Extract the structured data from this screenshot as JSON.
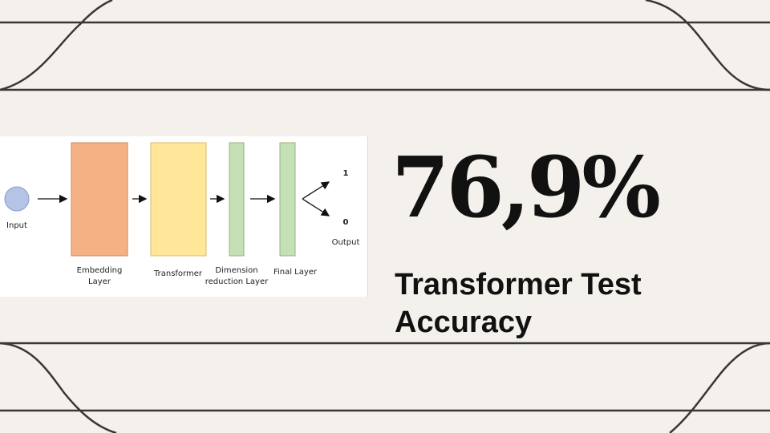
{
  "diagram": {
    "nodes": {
      "input": "Input",
      "embedding": "Embedding\nLayer",
      "transformer": "Transformer",
      "dimension": "Dimension\nreduction Layer",
      "final": "Final Layer",
      "output": "Output"
    },
    "outputs": {
      "one": "1",
      "zero": "0"
    },
    "colors": {
      "input": "#b4c3e6",
      "embedding": "#f4b183",
      "transformer": "#ffe699",
      "dense": "#c5e0b4"
    }
  },
  "stat": {
    "value": "76,9%",
    "caption": "Transformer Test Accuracy"
  },
  "theme": {
    "background": "#f4f1ec",
    "line": "#3a3632"
  }
}
